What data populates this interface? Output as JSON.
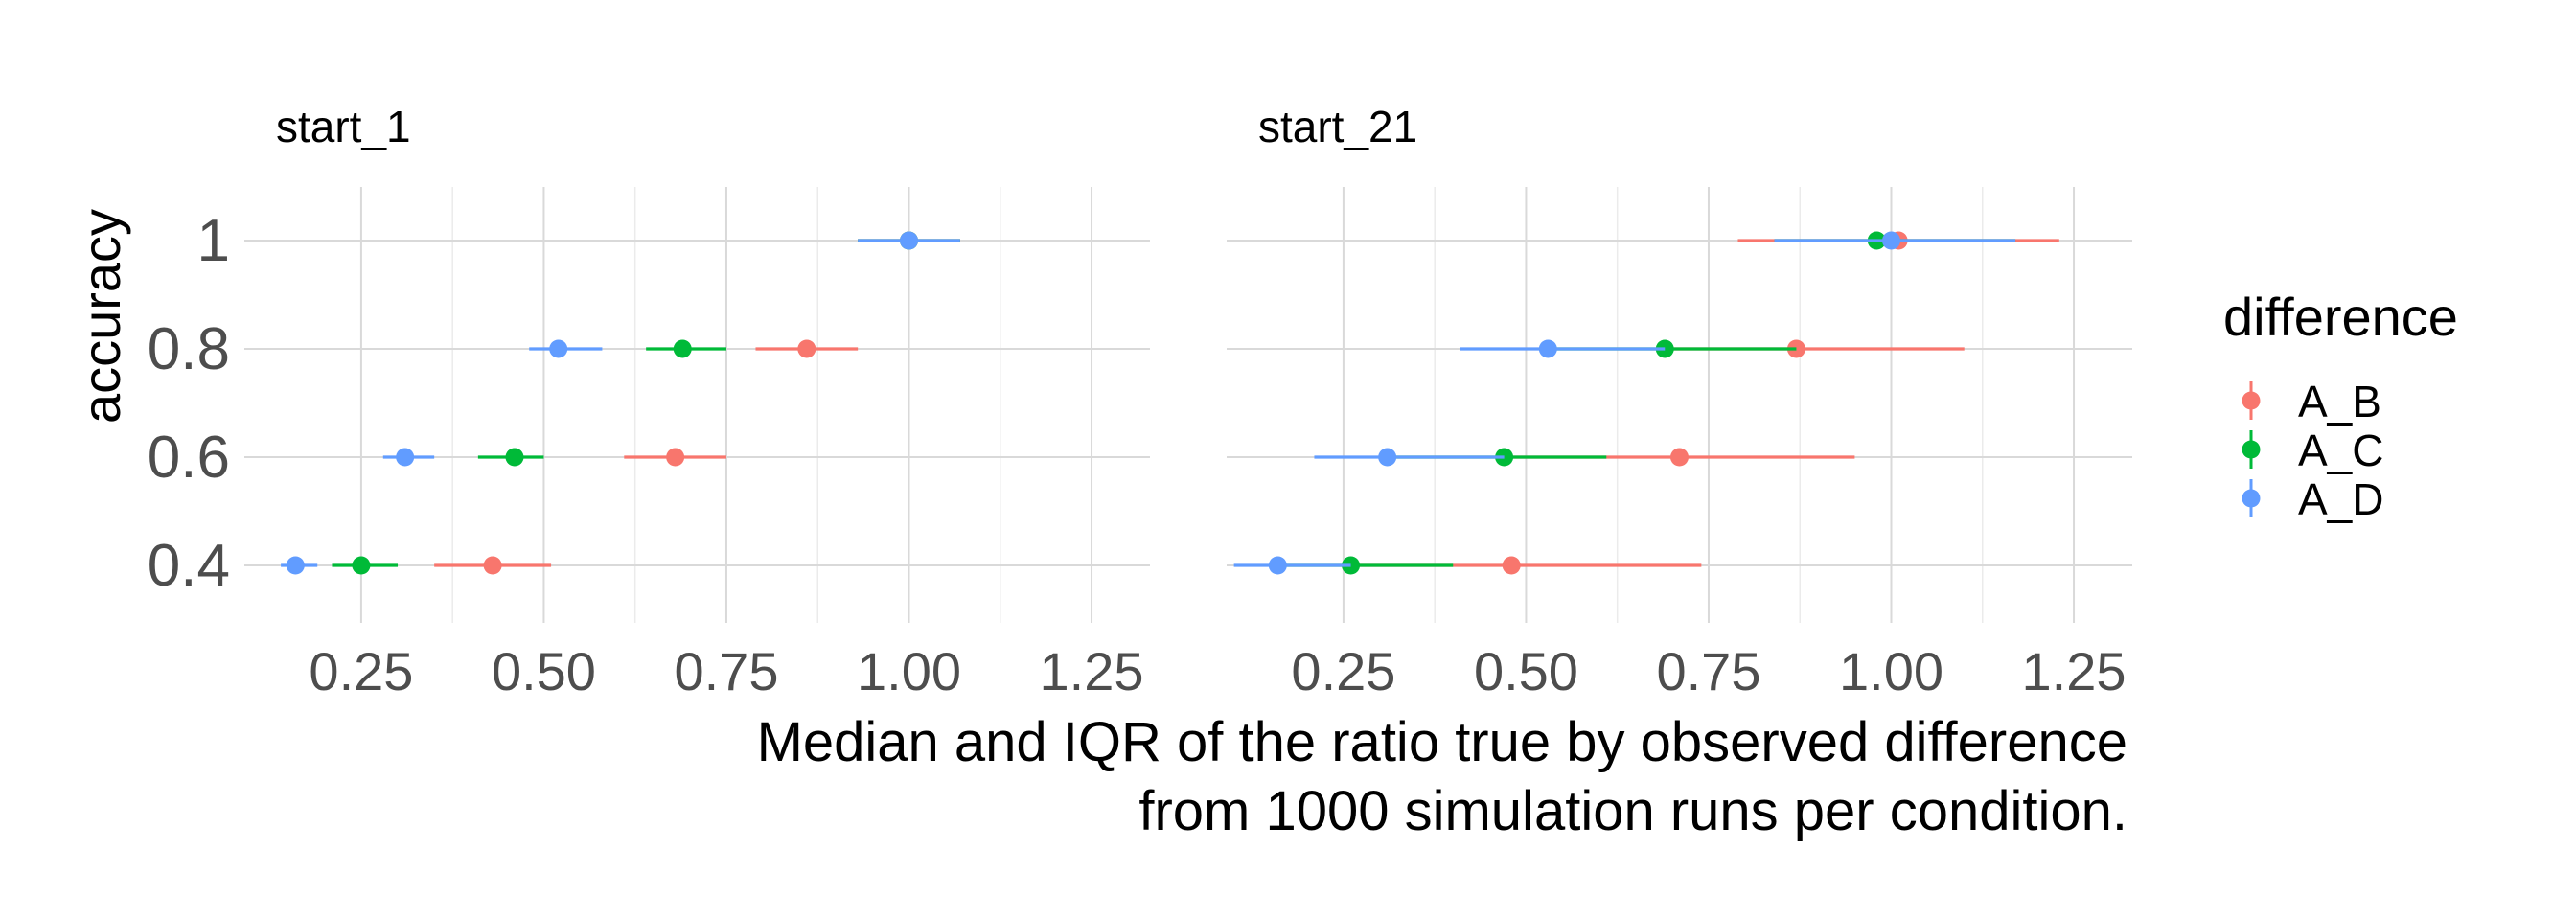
{
  "chart_data": {
    "type": "scatter",
    "subtype": "point-range (median with IQR error bars), faceted",
    "xlabel_lines": [
      "Median and IQR of the ratio true by observed difference",
      "from 1000 simulation runs per condition."
    ],
    "ylabel": "accuracy",
    "legend": {
      "title": "difference",
      "placement": "right"
    },
    "x_ticks": [
      "0.25",
      "0.50",
      "0.75",
      "1.00",
      "1.25"
    ],
    "x_tick_values": [
      0.25,
      0.5,
      0.75,
      1.0,
      1.25
    ],
    "xlim": [
      0.09,
      1.33
    ],
    "y_categories": [
      "0.4",
      "0.6",
      "0.8",
      "1"
    ],
    "grid": true,
    "colors": {
      "A_B": "#F8766D",
      "A_C": "#00BA38",
      "A_D": "#619CFF"
    },
    "series_names": [
      "A_B",
      "A_C",
      "A_D"
    ],
    "facets": [
      {
        "title": "start_1",
        "series": [
          {
            "name": "A_B",
            "points": [
              {
                "y": "0.4",
                "median": 0.43,
                "q1": 0.35,
                "q3": 0.51
              },
              {
                "y": "0.6",
                "median": 0.68,
                "q1": 0.61,
                "q3": 0.75
              },
              {
                "y": "0.8",
                "median": 0.86,
                "q1": 0.79,
                "q3": 0.93
              },
              {
                "y": "1",
                "median": 1.0,
                "q1": 0.93,
                "q3": 1.07
              }
            ]
          },
          {
            "name": "A_C",
            "points": [
              {
                "y": "0.4",
                "median": 0.25,
                "q1": 0.21,
                "q3": 0.3
              },
              {
                "y": "0.6",
                "median": 0.46,
                "q1": 0.41,
                "q3": 0.5
              },
              {
                "y": "0.8",
                "median": 0.69,
                "q1": 0.64,
                "q3": 0.75
              },
              {
                "y": "1",
                "median": 1.0,
                "q1": 0.93,
                "q3": 1.07
              }
            ]
          },
          {
            "name": "A_D",
            "points": [
              {
                "y": "0.4",
                "median": 0.16,
                "q1": 0.14,
                "q3": 0.19
              },
              {
                "y": "0.6",
                "median": 0.31,
                "q1": 0.28,
                "q3": 0.35
              },
              {
                "y": "0.8",
                "median": 0.52,
                "q1": 0.48,
                "q3": 0.58
              },
              {
                "y": "1",
                "median": 1.0,
                "q1": 0.93,
                "q3": 1.07
              }
            ]
          }
        ]
      },
      {
        "title": "start_21",
        "series": [
          {
            "name": "A_B",
            "points": [
              {
                "y": "0.4",
                "median": 0.48,
                "q1": 0.26,
                "q3": 0.74
              },
              {
                "y": "0.6",
                "median": 0.71,
                "q1": 0.47,
                "q3": 0.95
              },
              {
                "y": "0.8",
                "median": 0.87,
                "q1": 0.69,
                "q3": 1.1
              },
              {
                "y": "1",
                "median": 1.01,
                "q1": 0.79,
                "q3": 1.23
              }
            ]
          },
          {
            "name": "A_C",
            "points": [
              {
                "y": "0.4",
                "median": 0.26,
                "q1": 0.16,
                "q3": 0.4
              },
              {
                "y": "0.6",
                "median": 0.47,
                "q1": 0.31,
                "q3": 0.61
              },
              {
                "y": "0.8",
                "median": 0.69,
                "q1": 0.53,
                "q3": 0.87
              },
              {
                "y": "1",
                "median": 0.98,
                "q1": 0.84,
                "q3": 1.17
              }
            ]
          },
          {
            "name": "A_D",
            "points": [
              {
                "y": "0.4",
                "median": 0.16,
                "q1": 0.1,
                "q3": 0.26
              },
              {
                "y": "0.6",
                "median": 0.31,
                "q1": 0.21,
                "q3": 0.47
              },
              {
                "y": "0.8",
                "median": 0.53,
                "q1": 0.41,
                "q3": 0.69
              },
              {
                "y": "1",
                "median": 1.0,
                "q1": 0.84,
                "q3": 1.17
              }
            ]
          }
        ]
      }
    ]
  }
}
